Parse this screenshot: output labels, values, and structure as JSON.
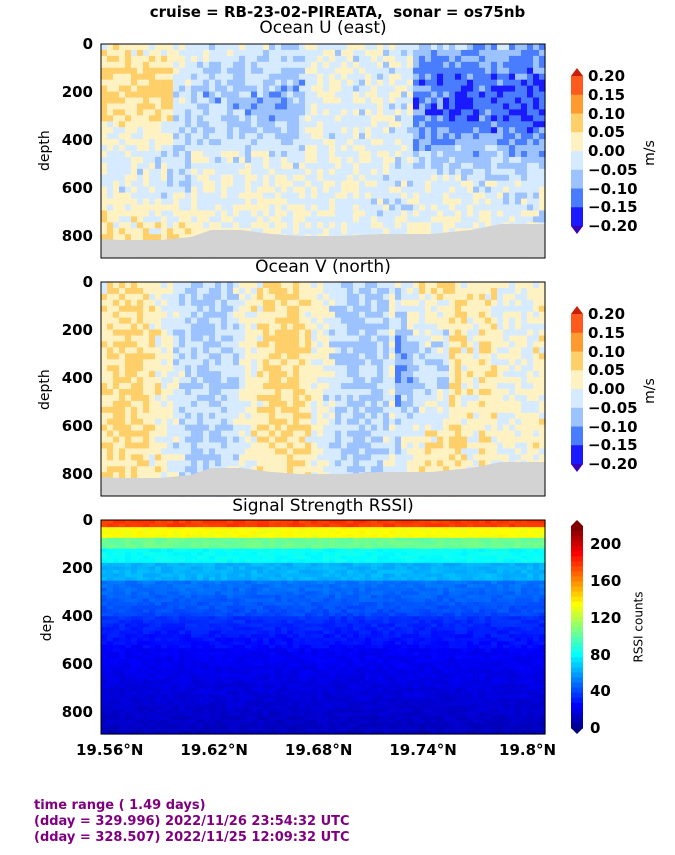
{
  "header": {
    "suptitle": "cruise = RB-23-02-PIREATA,  sonar = os75nb"
  },
  "chart_data": [
    {
      "type": "heatmap",
      "title": "Ocean U (east)",
      "ylabel": "depth",
      "yticks": [
        "0",
        "200",
        "400",
        "600",
        "800"
      ],
      "ylim": [
        890,
        0
      ],
      "xticks": [
        "19.56°N",
        "19.62°N",
        "19.68°N",
        "19.74°N",
        "19.8°N"
      ],
      "xlim": [
        19.555,
        19.81
      ],
      "colorbar": {
        "label": "m/s",
        "ticks": [
          "0.20",
          "0.15",
          "0.10",
          "0.05",
          "0.00",
          "−0.05",
          "−0.10",
          "−0.15",
          "−0.20"
        ]
      }
    },
    {
      "type": "heatmap",
      "title": "Ocean V (north)",
      "ylabel": "depth",
      "yticks": [
        "0",
        "200",
        "400",
        "600",
        "800"
      ],
      "ylim": [
        890,
        0
      ],
      "xticks": [
        "19.56°N",
        "19.62°N",
        "19.68°N",
        "19.74°N",
        "19.8°N"
      ],
      "xlim": [
        19.555,
        19.81
      ],
      "colorbar": {
        "label": "m/s",
        "ticks": [
          "0.20",
          "0.15",
          "0.10",
          "0.05",
          "0.00",
          "−0.05",
          "−0.10",
          "−0.15",
          "−0.20"
        ]
      }
    },
    {
      "type": "heatmap",
      "title": "Signal Strength RSSI)",
      "ylabel": "dep",
      "yticks": [
        "0",
        "200",
        "400",
        "600",
        "800"
      ],
      "ylim": [
        890,
        0
      ],
      "xticks": [
        "19.56°N",
        "19.62°N",
        "19.68°N",
        "19.74°N",
        "19.8°N"
      ],
      "xlim": [
        19.555,
        19.81
      ],
      "colorbar": {
        "label": "RSSI counts",
        "ticks": [
          "200",
          "160",
          "120",
          "80",
          "40",
          "0"
        ]
      }
    }
  ],
  "footer": {
    "line1": "time range ( 1.49 days)",
    "line2": "(dday = 329.996) 2022/11/26 23:54:32 UTC",
    "line3": "(dday = 328.507) 2022/11/25 12:09:32 UTC"
  },
  "colors": {
    "diverging": [
      "#3a00b8",
      "#1a1aff",
      "#4a7cff",
      "#9cc3ff",
      "#d6ebff",
      "#fff2c2",
      "#ffcf6a",
      "#ff9a2e",
      "#ff5a1e",
      "#c81e0a"
    ],
    "mask": "#d3d3d3",
    "footer": "#800080"
  }
}
